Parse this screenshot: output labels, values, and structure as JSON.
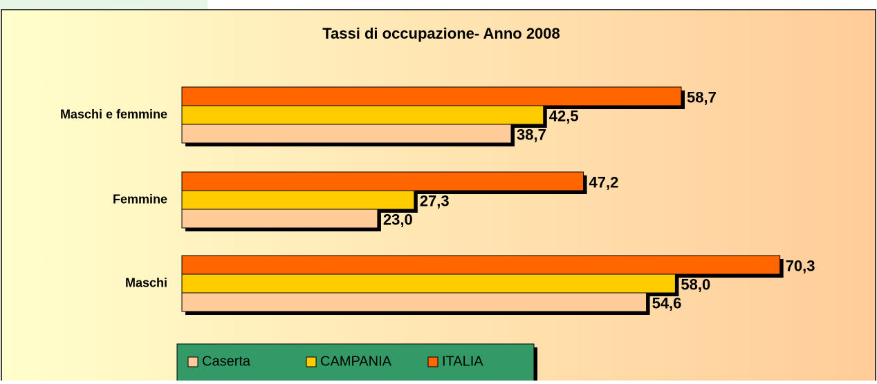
{
  "chart_data": {
    "type": "barh",
    "title": "Tassi di occupazione- Anno 2008",
    "categories": [
      "Maschi e femmine",
      "Femmine",
      "Maschi"
    ],
    "series": [
      {
        "name": "Caserta",
        "color": "#ffcc99",
        "values": [
          38.7,
          23.0,
          54.6
        ],
        "value_labels": [
          "38,7",
          "23,0",
          "54,6"
        ]
      },
      {
        "name": "CAMPANIA",
        "color": "#ffcc00",
        "values": [
          42.5,
          27.3,
          58.0
        ],
        "value_labels": [
          "42,5",
          "27,3",
          "58,0"
        ]
      },
      {
        "name": "ITALIA",
        "color": "#ff6600",
        "values": [
          58.7,
          47.2,
          70.3
        ],
        "value_labels": [
          "58,7",
          "47,2",
          "70,3"
        ]
      }
    ],
    "xlim": [
      0,
      80
    ],
    "legend": "bottom"
  }
}
